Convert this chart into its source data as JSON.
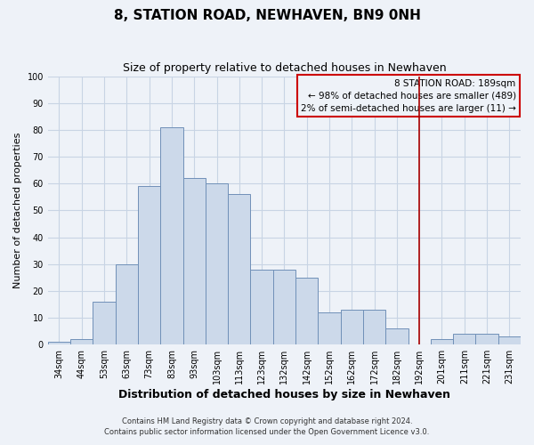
{
  "title": "8, STATION ROAD, NEWHAVEN, BN9 0NH",
  "subtitle": "Size of property relative to detached houses in Newhaven",
  "xlabel": "Distribution of detached houses by size in Newhaven",
  "ylabel": "Number of detached properties",
  "bar_labels": [
    "34sqm",
    "44sqm",
    "53sqm",
    "63sqm",
    "73sqm",
    "83sqm",
    "93sqm",
    "103sqm",
    "113sqm",
    "123sqm",
    "132sqm",
    "142sqm",
    "152sqm",
    "162sqm",
    "172sqm",
    "182sqm",
    "192sqm",
    "201sqm",
    "211sqm",
    "221sqm",
    "231sqm"
  ],
  "bar_values": [
    1,
    2,
    16,
    30,
    59,
    81,
    62,
    60,
    56,
    28,
    28,
    25,
    12,
    13,
    13,
    6,
    0,
    2,
    4,
    4,
    3
  ],
  "bar_color": "#ccd9ea",
  "bar_edge_color": "#7090b8",
  "grid_color": "#c8d4e4",
  "background_color": "#eef2f8",
  "annotation_box_text": "8 STATION ROAD: 189sqm\n← 98% of detached houses are smaller (489)\n2% of semi-detached houses are larger (11) →",
  "annotation_box_color": "#cc0000",
  "vline_x_label": "192sqm",
  "vline_color": "#aa0000",
  "ylim": [
    0,
    100
  ],
  "yticks": [
    0,
    10,
    20,
    30,
    40,
    50,
    60,
    70,
    80,
    90,
    100
  ],
  "footer_line1": "Contains HM Land Registry data © Crown copyright and database right 2024.",
  "footer_line2": "Contains public sector information licensed under the Open Government Licence v3.0.",
  "title_fontsize": 11,
  "subtitle_fontsize": 9,
  "xlabel_fontsize": 9,
  "ylabel_fontsize": 8,
  "tick_fontsize": 7,
  "annotation_fontsize": 7.5,
  "footer_fontsize": 6
}
